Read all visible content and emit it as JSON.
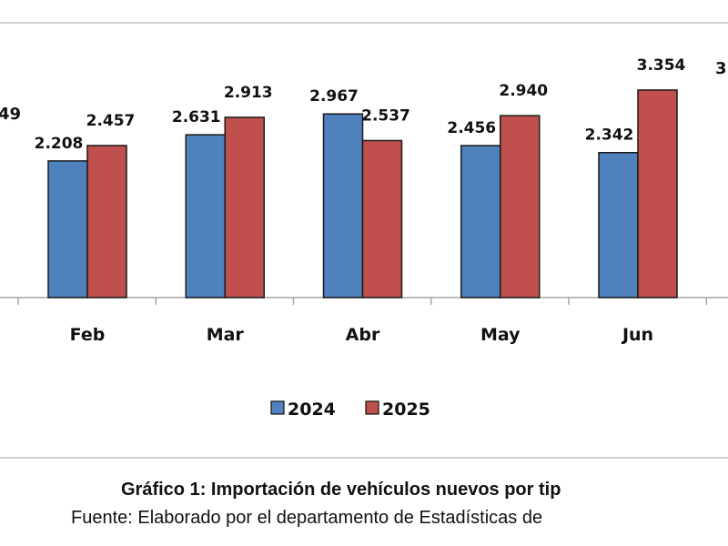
{
  "chart_data": {
    "type": "bar",
    "categories": [
      "Feb",
      "Mar",
      "Abr",
      "May",
      "Jun"
    ],
    "series": [
      {
        "name": "2024",
        "color": "#4f81bd",
        "values": [
          2.208,
          2.631,
          2.967,
          2.456,
          2.342
        ],
        "labels": [
          "2.208",
          "2.631",
          "2.967",
          "2.456",
          "2.342"
        ]
      },
      {
        "name": "2025",
        "color": "#c0504d",
        "values": [
          2.457,
          2.913,
          2.537,
          2.94,
          3.354
        ],
        "labels": [
          "2.457",
          "2.913",
          "2.537",
          "2.940",
          "3.354"
        ]
      }
    ],
    "clipped_labels": {
      "left": "49",
      "right": "3"
    },
    "ylim": [
      0,
      4.8
    ],
    "legend": "bottom",
    "grid": false
  },
  "caption": {
    "title": "Gráfico 1: Importación de vehículos nuevos por tip",
    "source": "Fuente: Elaborado por el departamento de Estadísticas de"
  }
}
